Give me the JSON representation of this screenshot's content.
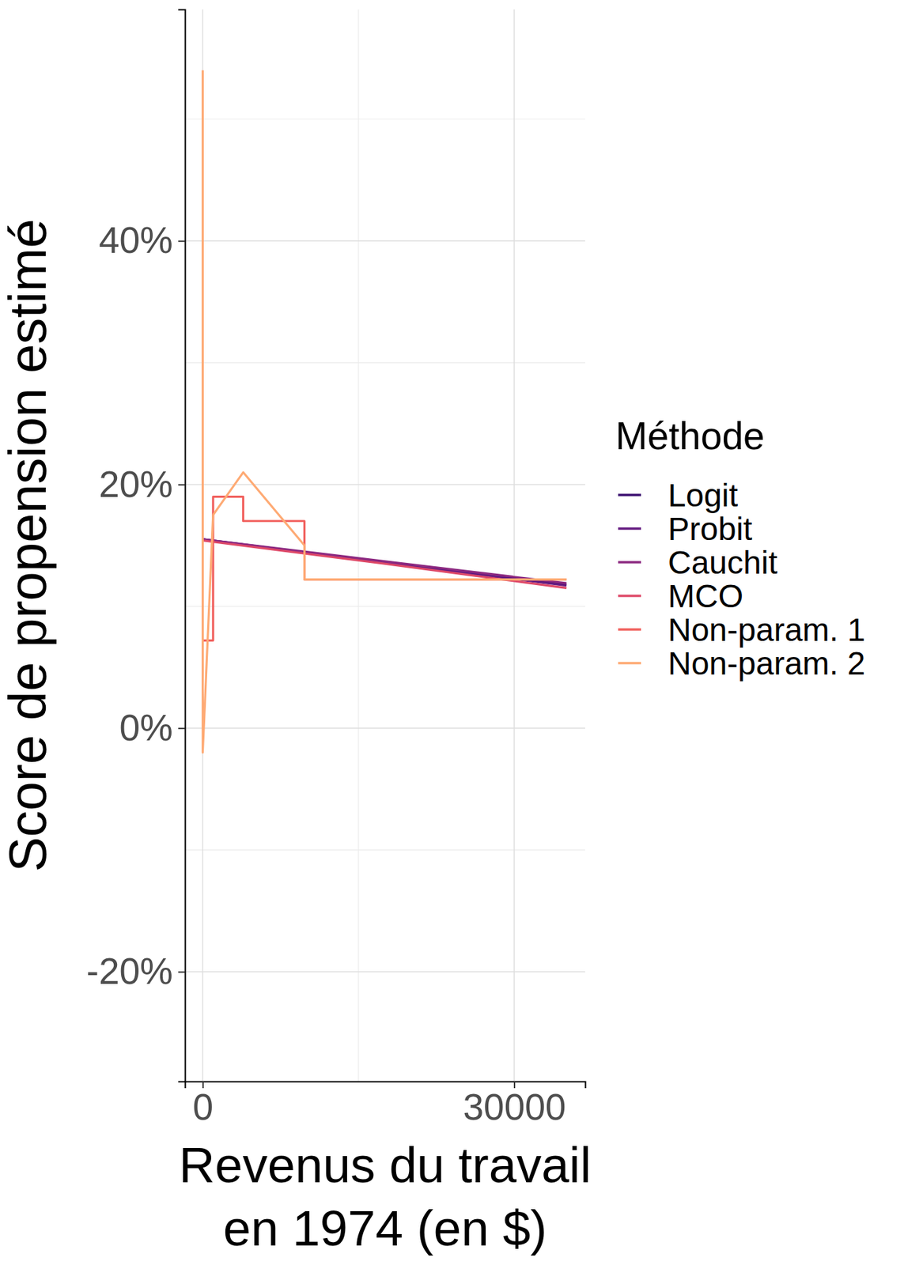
{
  "chart_data": {
    "type": "line",
    "x_label": "Revenus du travail\nen 1974 (en $)",
    "y_label": "Score de propension estimé",
    "legend_title": "Méthode",
    "legend": "right",
    "grid": true,
    "xlim": [
      -1710,
      36840
    ],
    "ylim": [
      -29,
      59
    ],
    "xticks": [
      0,
      30000
    ],
    "yticks": [
      {
        "value": -20,
        "label": "-20%"
      },
      {
        "value": 0,
        "label": "0%"
      },
      {
        "value": 20,
        "label": "20%"
      },
      {
        "value": 40,
        "label": "40%"
      }
    ],
    "series": [
      {
        "name": "Logit",
        "color": "#3b0f70",
        "x": [
          0,
          17500,
          35040
        ],
        "values": [
          15.5,
          13.6,
          11.8
        ]
      },
      {
        "name": "Probit",
        "color": "#641a80",
        "x": [
          0,
          17500,
          35040
        ],
        "values": [
          15.5,
          13.6,
          11.7
        ]
      },
      {
        "name": "Cauchit",
        "color": "#8c2981",
        "x": [
          0,
          17500,
          35040
        ],
        "values": [
          15.5,
          13.7,
          11.9
        ]
      },
      {
        "name": "MCO",
        "color": "#de4968",
        "x": [
          0,
          17500,
          35040
        ],
        "values": [
          15.4,
          13.5,
          11.5
        ]
      },
      {
        "name": "Non-param. 1",
        "color": "#f1605d",
        "x": [
          0,
          1000,
          1000,
          3900,
          3900,
          9800,
          9800,
          35040
        ],
        "values": [
          7.2,
          7.2,
          19.0,
          19.0,
          17.0,
          17.0,
          12.2,
          12.2
        ]
      },
      {
        "name": "Non-param. 2",
        "color": "#feaa74",
        "x": [
          0,
          0,
          1000,
          3900,
          9800,
          9800,
          35040
        ],
        "values": [
          54.0,
          -2.0,
          17.5,
          21.0,
          15.0,
          12.2,
          12.2
        ]
      }
    ]
  }
}
